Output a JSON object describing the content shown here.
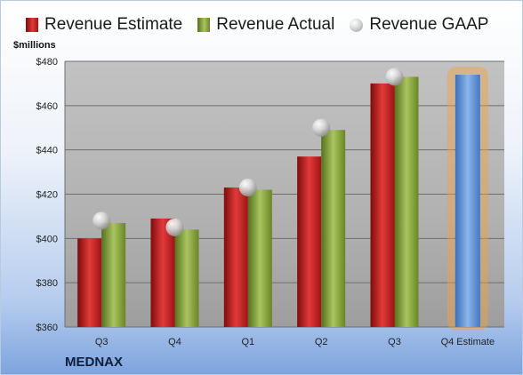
{
  "chart_data": {
    "type": "bar",
    "title": "",
    "ylabel": "$millions",
    "xlabel": "",
    "company": "MEDNAX",
    "categories": [
      "Q3",
      "Q4",
      "Q1",
      "Q2",
      "Q3",
      "Q4 Estimate"
    ],
    "series": [
      {
        "name": "Revenue Estimate",
        "values": [
          400,
          409,
          423,
          437,
          470,
          null
        ],
        "color": "#cc1f1f"
      },
      {
        "name": "Revenue Actual",
        "values": [
          407,
          404,
          422,
          449,
          473,
          null
        ],
        "color": "#8aaa3e"
      },
      {
        "name": "Revenue GAAP",
        "values": [
          408,
          405,
          423,
          450,
          473,
          null
        ],
        "color": "#b0b0b0",
        "marker": "sphere"
      }
    ],
    "highlight": {
      "category": "Q4 Estimate",
      "value": 474,
      "color": "#5b8fd4",
      "glow": "#f4a23c"
    },
    "ylim": [
      360,
      480
    ],
    "yticks": [
      360,
      380,
      400,
      420,
      440,
      460,
      480
    ],
    "ytick_labels": [
      "$360",
      "$380",
      "$400",
      "$420",
      "$440",
      "$460",
      "$480"
    ],
    "grid": true,
    "legend_position": "top"
  }
}
